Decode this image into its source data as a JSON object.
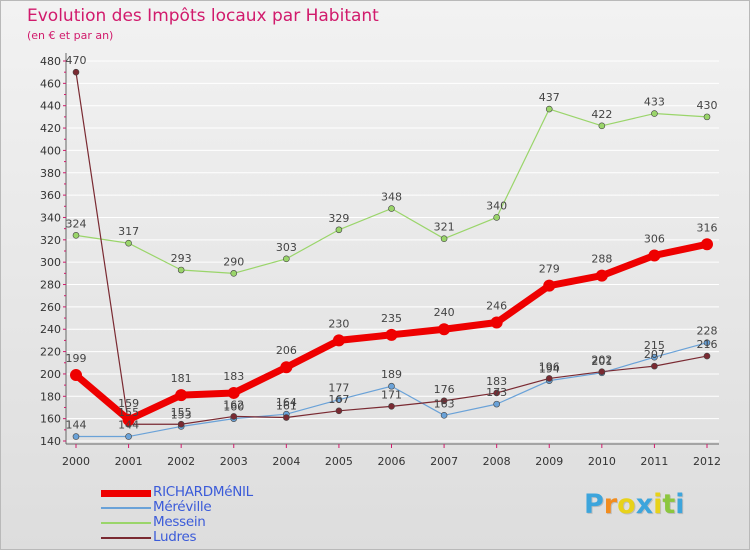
{
  "title": "Evolution des Impôts locaux par Habitant",
  "subtitle": "(en € et par an)",
  "logo": [
    "P",
    "r",
    "o",
    "x",
    "i",
    "t",
    "i"
  ],
  "colors": {
    "title": "#d11a6c",
    "axis": "#d11a6c",
    "legend_text": "#3b5bd9",
    "logo": [
      "#3da5dc",
      "#f28c1e",
      "#e8d21a",
      "#3da5dc",
      "#e8d21a",
      "#8cc63f",
      "#3da5dc"
    ]
  },
  "chart_data": {
    "type": "line",
    "title": "Evolution des Impôts locaux par Habitant",
    "subtitle": "(en € et par an)",
    "xlabel": "",
    "ylabel": "",
    "x": [
      "2000",
      "2001",
      "2002",
      "2003",
      "2004",
      "2005",
      "2006",
      "2007",
      "2008",
      "2009",
      "2010",
      "2011",
      "2012"
    ],
    "ylim": [
      140,
      480
    ],
    "yticks": [
      140,
      160,
      180,
      200,
      220,
      240,
      260,
      280,
      300,
      320,
      340,
      360,
      380,
      400,
      420,
      440,
      460,
      480
    ],
    "legend_position": "bottom-left",
    "series": [
      {
        "name": "RICHARDMéNIL",
        "color": "#ee0000",
        "emphasis": true,
        "values": [
          199,
          159,
          181,
          183,
          206,
          230,
          235,
          240,
          246,
          279,
          288,
          306,
          316
        ],
        "labels": [
          "199",
          "159",
          "181",
          "183",
          "206",
          "230",
          "235",
          "240",
          "246",
          "279",
          "288",
          "306",
          "316"
        ]
      },
      {
        "name": "Méréville",
        "color": "#6aa2d8",
        "emphasis": false,
        "values": [
          144,
          144,
          153,
          160,
          164,
          177,
          189,
          163,
          173,
          194,
          201,
          215,
          228
        ],
        "labels": [
          "144",
          "144",
          "153",
          "160",
          "164",
          "177",
          "189",
          "163",
          "173",
          "194",
          "201",
          "215",
          "228"
        ]
      },
      {
        "name": "Messein",
        "color": "#9ad56a",
        "emphasis": false,
        "values": [
          324,
          317,
          293,
          290,
          303,
          329,
          348,
          321,
          340,
          437,
          422,
          433,
          430
        ],
        "labels": [
          "324",
          "317",
          "293",
          "290",
          "303",
          "329",
          "348",
          "321",
          "340",
          "437",
          "422",
          "433",
          "430"
        ]
      },
      {
        "name": "Ludres",
        "color": "#7a2a32",
        "emphasis": false,
        "values": [
          470,
          155,
          155,
          162,
          161,
          167,
          171,
          176,
          183,
          196,
          202,
          207,
          216
        ],
        "labels": [
          "470",
          "155",
          "155",
          "162",
          "161",
          "167",
          "171",
          "176",
          "183",
          "196",
          "202",
          "207",
          "216"
        ]
      }
    ]
  }
}
